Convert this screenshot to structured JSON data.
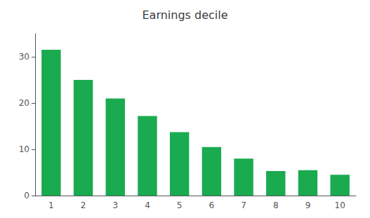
{
  "chart_data": {
    "type": "bar",
    "title": "Earnings decile",
    "categories": [
      1,
      2,
      3,
      4,
      5,
      6,
      7,
      8,
      9,
      10
    ],
    "values": [
      31.5,
      25.0,
      21.0,
      17.2,
      13.7,
      10.5,
      8.0,
      5.3,
      5.5,
      4.5
    ],
    "color": "#1aaa50",
    "ylim": [
      0,
      35
    ],
    "yticks": [
      0,
      10,
      20,
      30
    ],
    "grid": false
  }
}
